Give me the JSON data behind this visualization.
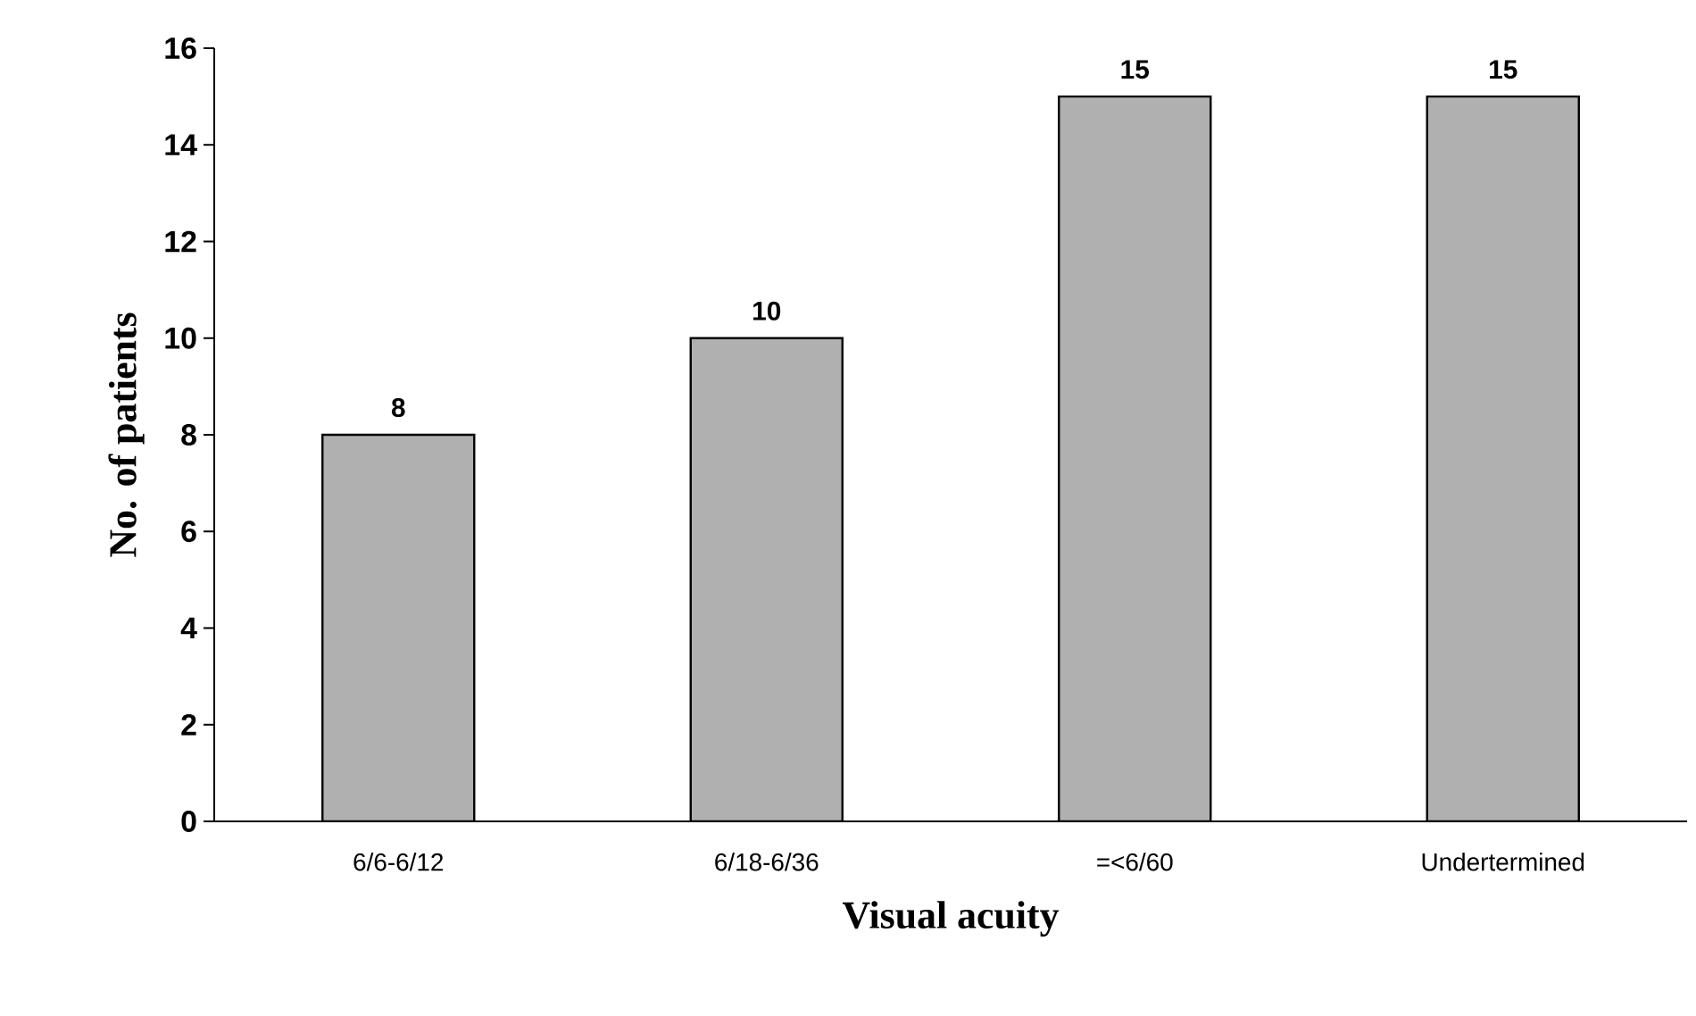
{
  "chart_data": {
    "type": "bar",
    "xlabel": "Visual acuity",
    "ylabel": "No. of patients",
    "categories": [
      "6/6-6/12",
      "6/18-6/36",
      "=<6/60",
      "Undertermined"
    ],
    "values": [
      8,
      10,
      15,
      15
    ],
    "color": "#b0b0b0",
    "ylim": [
      0,
      16
    ],
    "yticks": [
      0,
      2,
      4,
      6,
      8,
      10,
      12,
      14,
      16
    ],
    "data_labels": true
  }
}
